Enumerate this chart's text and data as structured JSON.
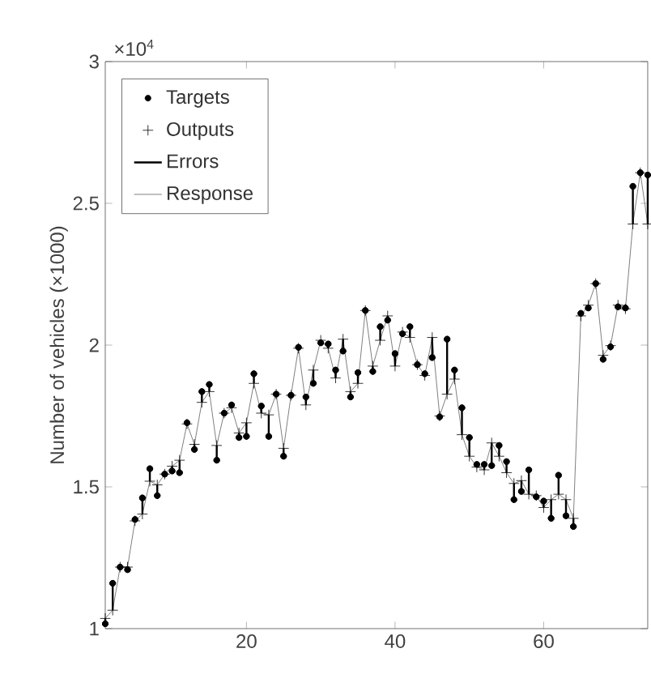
{
  "chart_data": {
    "type": "scatter",
    "ylabel": "Number of vehicles (×1000)",
    "annotations": [
      "×10$^{4}$"
    ],
    "x": [
      1,
      2,
      3,
      4,
      5,
      6,
      7,
      8,
      9,
      10,
      11,
      12,
      13,
      14,
      15,
      16,
      17,
      18,
      19,
      20,
      21,
      22,
      23,
      24,
      25,
      26,
      27,
      28,
      29,
      30,
      31,
      32,
      33,
      34,
      35,
      36,
      37,
      38,
      39,
      40,
      41,
      42,
      43,
      44,
      45,
      46,
      47,
      48,
      49,
      50,
      51,
      52,
      53,
      54,
      55,
      56,
      57,
      58,
      59,
      60,
      61,
      62,
      63,
      64,
      65,
      66,
      67,
      68,
      69,
      70,
      71,
      72,
      73,
      74
    ],
    "xlim": [
      1,
      74
    ],
    "xticks": [
      20,
      40,
      60
    ],
    "ylim": [
      1,
      3
    ],
    "yticks": [
      1,
      1.5,
      2,
      2.5,
      3
    ],
    "legend": "top left",
    "grid": false,
    "series": [
      {
        "name": "Targets",
        "marker": "circle",
        "color": "#000000",
        "values": [
          1.017,
          1.16,
          1.217,
          1.208,
          1.385,
          1.461,
          1.564,
          1.469,
          1.545,
          1.556,
          1.55,
          1.726,
          1.632,
          1.836,
          1.861,
          1.594,
          1.76,
          1.789,
          1.674,
          1.678,
          1.899,
          1.785,
          1.678,
          1.827,
          1.608,
          1.823,
          1.992,
          1.817,
          1.865,
          2.008,
          2.004,
          1.912,
          1.979,
          1.817,
          1.903,
          2.122,
          1.907,
          2.065,
          2.088,
          1.97,
          2.04,
          2.065,
          1.931,
          1.899,
          1.956,
          1.747,
          2.021,
          1.912,
          1.779,
          1.674,
          1.579,
          1.579,
          1.575,
          1.646,
          1.589,
          1.455,
          1.484,
          1.56,
          1.465,
          1.45,
          1.389,
          1.541,
          1.398,
          1.36,
          2.112,
          2.131,
          2.217,
          1.95,
          1.994,
          2.135,
          2.131,
          2.56,
          2.608,
          2.6
        ]
      },
      {
        "name": "Outputs",
        "marker": "cross",
        "color": "#000000",
        "values": [
          1.036,
          1.065,
          1.217,
          1.217,
          1.38,
          1.404,
          1.52,
          1.507,
          1.545,
          1.573,
          1.594,
          1.722,
          1.65,
          1.798,
          1.836,
          1.646,
          1.76,
          1.779,
          1.69,
          1.726,
          1.865,
          1.76,
          1.754,
          1.827,
          1.636,
          1.823,
          1.989,
          1.789,
          1.912,
          2.017,
          1.989,
          1.884,
          2.021,
          1.836,
          1.865,
          2.122,
          1.926,
          2.017,
          2.103,
          1.926,
          2.046,
          2.027,
          1.931,
          1.893,
          2.027,
          1.75,
          1.827,
          1.88,
          1.684,
          1.608,
          1.57,
          1.56,
          1.655,
          1.608,
          1.55,
          1.512,
          1.522,
          1.474,
          1.469,
          1.427,
          1.455,
          1.474,
          1.455,
          1.389,
          2.103,
          2.141,
          2.217,
          1.964,
          1.998,
          2.141,
          2.128,
          2.427,
          2.608,
          2.427
        ]
      },
      {
        "name": "Errors",
        "marker": "circle",
        "color": "#000000",
        "values": [
          1.017,
          1.16,
          1.217,
          1.208,
          1.385,
          1.461,
          1.564,
          1.469,
          1.545,
          1.556,
          1.55,
          1.726,
          1.632,
          1.836,
          1.861,
          1.594,
          1.76,
          1.789,
          1.674,
          1.678,
          1.899,
          1.785,
          1.678,
          1.827,
          1.608,
          1.823,
          1.992,
          1.817,
          1.865,
          2.008,
          2.004,
          1.912,
          1.979,
          1.817,
          1.903,
          2.122,
          1.907,
          2.065,
          2.088,
          1.97,
          2.04,
          2.065,
          1.931,
          1.899,
          1.956,
          1.747,
          2.021,
          1.912,
          1.779,
          1.674,
          1.579,
          1.579,
          1.575,
          1.646,
          1.589,
          1.455,
          1.484,
          1.56,
          1.465,
          1.45,
          1.389,
          1.541,
          1.398,
          1.36,
          2.112,
          2.131,
          2.217,
          1.95,
          1.994,
          2.135,
          2.131,
          2.56,
          2.608,
          2.6
        ],
        "errors": [
          [
            1.017,
            1.036
          ],
          [
            1.065,
            1.16
          ],
          null,
          null,
          null,
          [
            1.404,
            1.461
          ],
          [
            1.52,
            1.564
          ],
          [
            1.469,
            1.507
          ],
          null,
          [
            1.556,
            1.573
          ],
          [
            1.55,
            1.594
          ],
          null,
          [
            1.632,
            1.65
          ],
          [
            1.798,
            1.836
          ],
          [
            1.836,
            1.861
          ],
          [
            1.594,
            1.646
          ],
          null,
          [
            1.779,
            1.789
          ],
          [
            1.674,
            1.69
          ],
          [
            1.678,
            1.726
          ],
          [
            1.865,
            1.899
          ],
          [
            1.76,
            1.785
          ],
          [
            1.678,
            1.754
          ],
          null,
          [
            1.608,
            1.636
          ],
          null,
          null,
          [
            1.789,
            1.817
          ],
          [
            1.865,
            1.912
          ],
          null,
          [
            1.989,
            2.004
          ],
          [
            1.884,
            1.912
          ],
          [
            1.979,
            2.021
          ],
          [
            1.817,
            1.836
          ],
          [
            1.865,
            1.903
          ],
          null,
          [
            1.907,
            1.926
          ],
          [
            2.017,
            2.065
          ],
          [
            2.088,
            2.103
          ],
          [
            1.926,
            1.97
          ],
          null,
          [
            2.027,
            2.065
          ],
          null,
          null,
          [
            1.956,
            2.027
          ],
          null,
          [
            1.827,
            2.021
          ],
          [
            1.88,
            1.912
          ],
          [
            1.684,
            1.779
          ],
          [
            1.608,
            1.674
          ],
          null,
          [
            1.56,
            1.579
          ],
          [
            1.575,
            1.655
          ],
          [
            1.608,
            1.646
          ],
          [
            1.55,
            1.589
          ],
          [
            1.455,
            1.512
          ],
          [
            1.484,
            1.522
          ],
          [
            1.474,
            1.56
          ],
          null,
          [
            1.427,
            1.45
          ],
          [
            1.389,
            1.455
          ],
          [
            1.474,
            1.541
          ],
          [
            1.398,
            1.455
          ],
          [
            1.36,
            1.389
          ],
          null,
          [
            2.131,
            2.141
          ],
          null,
          [
            1.95,
            1.964
          ],
          null,
          null,
          null,
          [
            2.427,
            2.56
          ],
          null,
          [
            2.427,
            2.6
          ]
        ]
      },
      {
        "name": "Response",
        "type": "line",
        "line_style": "solid",
        "color": "#808080",
        "values": [
          1.036,
          1.065,
          1.217,
          1.217,
          1.38,
          1.404,
          1.52,
          1.507,
          1.545,
          1.573,
          1.594,
          1.722,
          1.65,
          1.798,
          1.836,
          1.646,
          1.76,
          1.779,
          1.69,
          1.726,
          1.865,
          1.76,
          1.754,
          1.827,
          1.636,
          1.823,
          1.989,
          1.789,
          1.912,
          2.017,
          1.989,
          1.884,
          2.021,
          1.836,
          1.865,
          2.122,
          1.926,
          2.017,
          2.103,
          1.926,
          2.046,
          2.027,
          1.931,
          1.893,
          2.027,
          1.75,
          1.827,
          1.88,
          1.684,
          1.608,
          1.57,
          1.56,
          1.655,
          1.608,
          1.55,
          1.512,
          1.522,
          1.474,
          1.469,
          1.427,
          1.455,
          1.474,
          1.455,
          1.389,
          2.103,
          2.141,
          2.217,
          1.964,
          1.998,
          2.141,
          2.128,
          2.427,
          2.608,
          2.427
        ]
      }
    ]
  }
}
